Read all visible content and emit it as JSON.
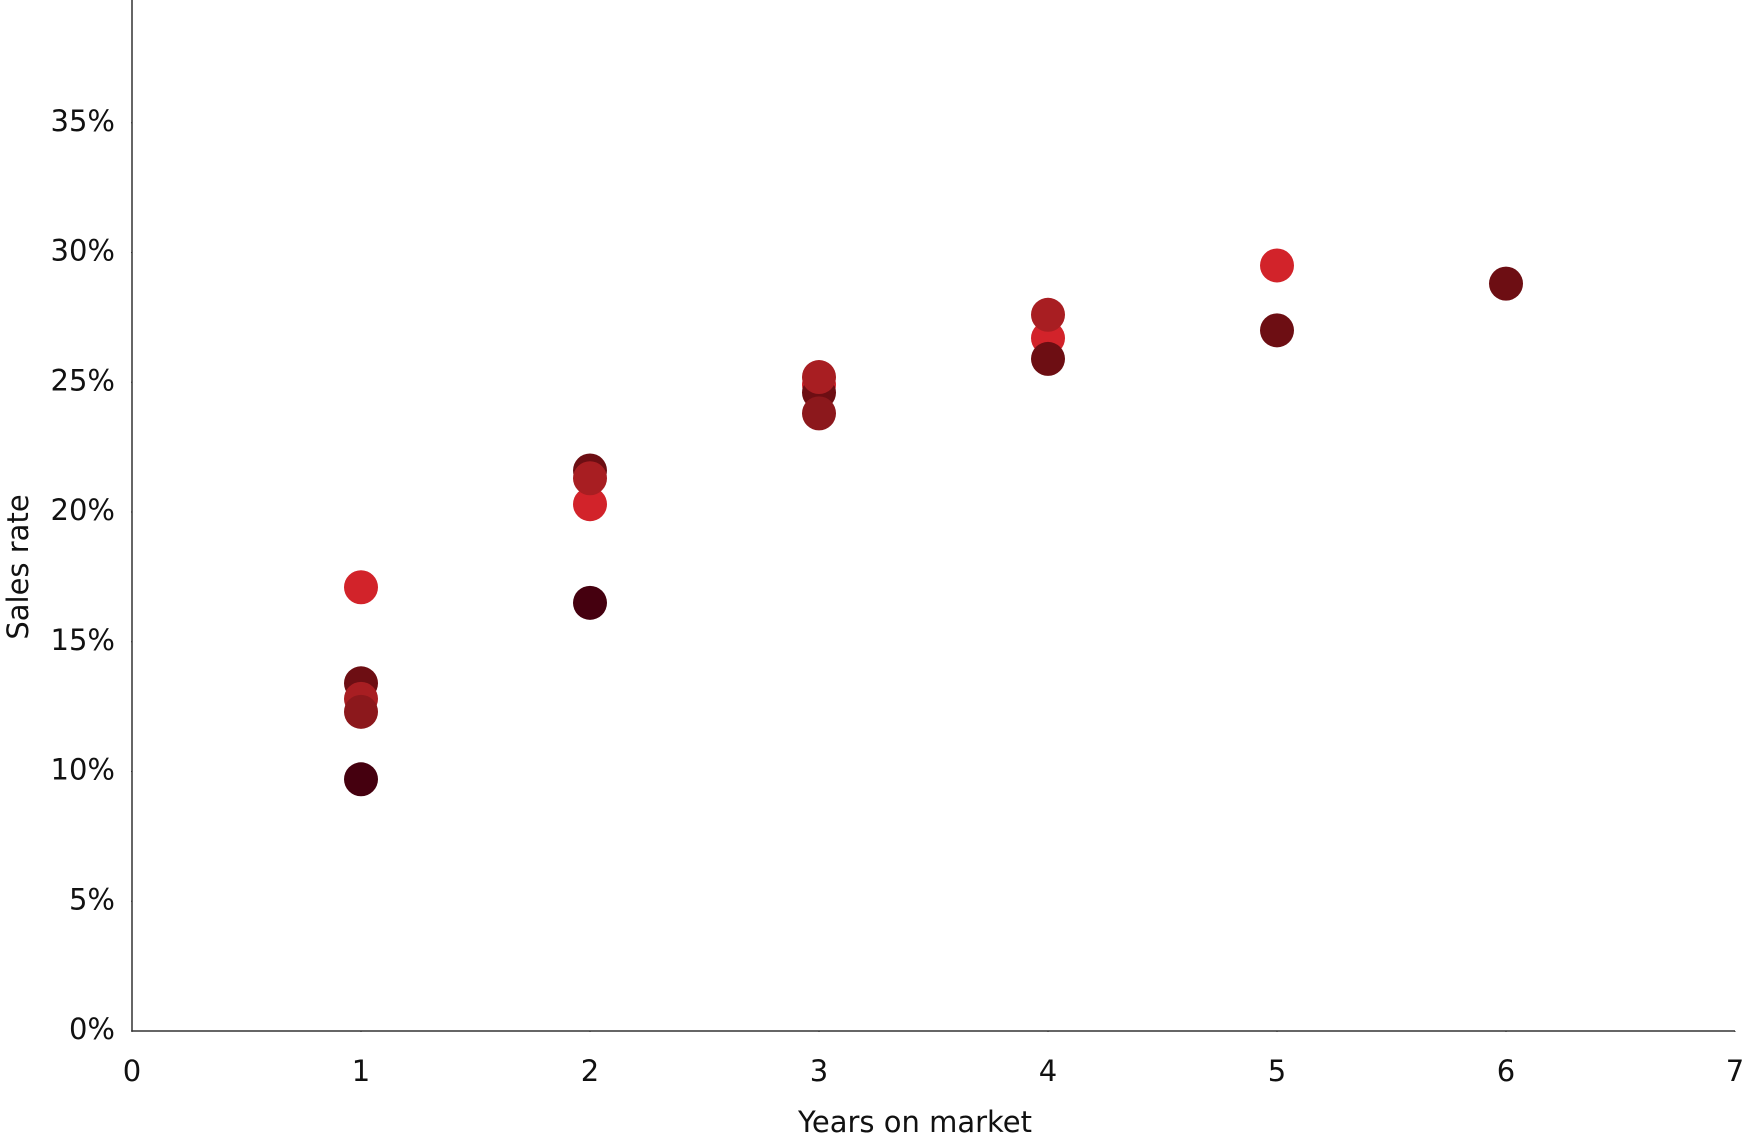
{
  "chart_data": {
    "type": "scatter",
    "x_label": "Years on market",
    "y_label": "Sales rate",
    "xlim": [
      0,
      7
    ],
    "xticks": [
      0,
      1,
      2,
      3,
      4,
      5,
      6,
      7
    ],
    "ylim": [
      0,
      40
    ],
    "yticks": [
      {
        "value": 0,
        "label": "0%"
      },
      {
        "value": 5,
        "label": "5%"
      },
      {
        "value": 10,
        "label": "10%"
      },
      {
        "value": 15,
        "label": "15%"
      },
      {
        "value": 20,
        "label": "20%"
      },
      {
        "value": 25,
        "label": "25%"
      },
      {
        "value": 30,
        "label": "30%"
      },
      {
        "value": 35,
        "label": "35%"
      }
    ],
    "grid": false,
    "series": [
      {
        "color": "#d2232a",
        "x": [
          1,
          2,
          3,
          4,
          5
        ],
        "values": [
          17.1,
          20.3,
          24.9,
          26.7,
          29.5
        ]
      },
      {
        "color": "#6d0e13",
        "x": [
          1,
          2,
          3,
          4,
          5,
          6
        ],
        "values": [
          13.4,
          21.6,
          24.6,
          25.9,
          27.0,
          28.8
        ]
      },
      {
        "color": "#a81e22",
        "x": [
          1,
          2,
          3,
          4
        ],
        "values": [
          12.8,
          21.3,
          25.2,
          27.6
        ]
      },
      {
        "color": "#8c181c",
        "x": [
          1,
          3
        ],
        "values": [
          12.3,
          23.8
        ]
      },
      {
        "color": "#45000f",
        "x": [
          1,
          2
        ],
        "values": [
          9.7,
          16.5
        ]
      }
    ]
  }
}
